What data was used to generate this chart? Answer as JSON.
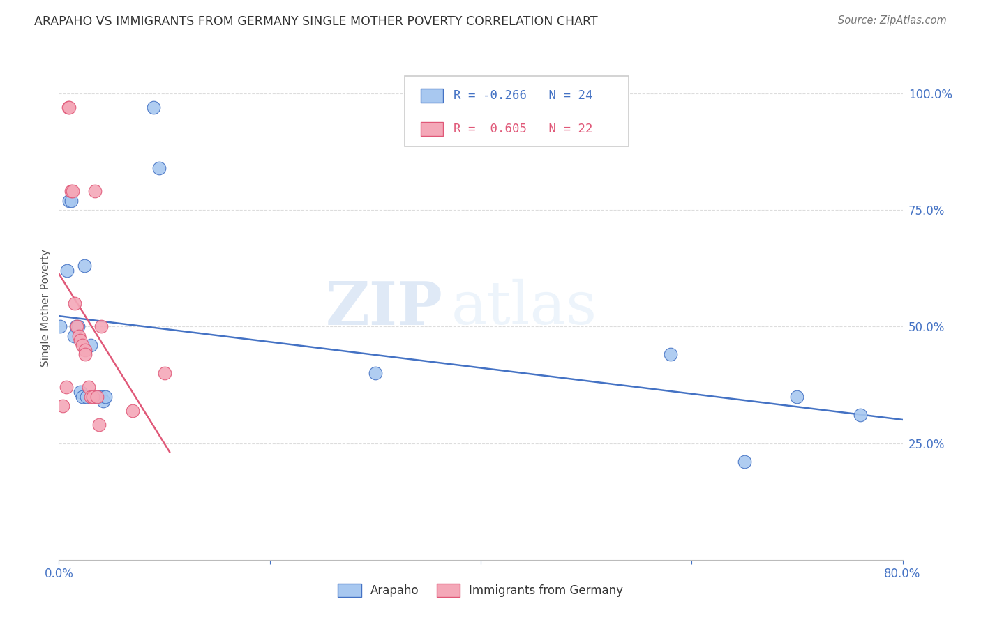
{
  "title": "ARAPAHO VS IMMIGRANTS FROM GERMANY SINGLE MOTHER POVERTY CORRELATION CHART",
  "source": "Source: ZipAtlas.com",
  "ylabel": "Single Mother Poverty",
  "ytick_labels": [
    "100.0%",
    "75.0%",
    "50.0%",
    "25.0%"
  ],
  "ytick_values": [
    1.0,
    0.75,
    0.5,
    0.25
  ],
  "xlim": [
    0.0,
    0.8
  ],
  "ylim": [
    0.0,
    1.08
  ],
  "legend_blue_R": "-0.266",
  "legend_blue_N": "24",
  "legend_pink_R": "0.605",
  "legend_pink_N": "22",
  "legend_label_blue": "Arapaho",
  "legend_label_pink": "Immigrants from Germany",
  "color_blue": "#A8C8F0",
  "color_pink": "#F4A8B8",
  "color_blue_line": "#4472C4",
  "color_pink_line": "#E05878",
  "watermark_zip": "ZIP",
  "watermark_atlas": "atlas",
  "arapaho_x": [
    0.001,
    0.008,
    0.01,
    0.012,
    0.014,
    0.016,
    0.018,
    0.02,
    0.022,
    0.024,
    0.026,
    0.03,
    0.035,
    0.038,
    0.04,
    0.042,
    0.044,
    0.09,
    0.095,
    0.3,
    0.58,
    0.65,
    0.7,
    0.76
  ],
  "arapaho_y": [
    0.5,
    0.62,
    0.77,
    0.77,
    0.48,
    0.5,
    0.5,
    0.36,
    0.35,
    0.63,
    0.35,
    0.46,
    0.35,
    0.35,
    0.35,
    0.34,
    0.35,
    0.97,
    0.84,
    0.4,
    0.44,
    0.21,
    0.35,
    0.31
  ],
  "germany_x": [
    0.004,
    0.007,
    0.009,
    0.01,
    0.012,
    0.013,
    0.015,
    0.017,
    0.019,
    0.02,
    0.022,
    0.025,
    0.025,
    0.028,
    0.03,
    0.032,
    0.034,
    0.036,
    0.038,
    0.04,
    0.07,
    0.1
  ],
  "germany_y": [
    0.33,
    0.37,
    0.97,
    0.97,
    0.79,
    0.79,
    0.55,
    0.5,
    0.48,
    0.47,
    0.46,
    0.45,
    0.44,
    0.37,
    0.35,
    0.35,
    0.79,
    0.35,
    0.29,
    0.5,
    0.32,
    0.4
  ],
  "background_color": "#FFFFFF",
  "grid_color": "#DDDDDD"
}
